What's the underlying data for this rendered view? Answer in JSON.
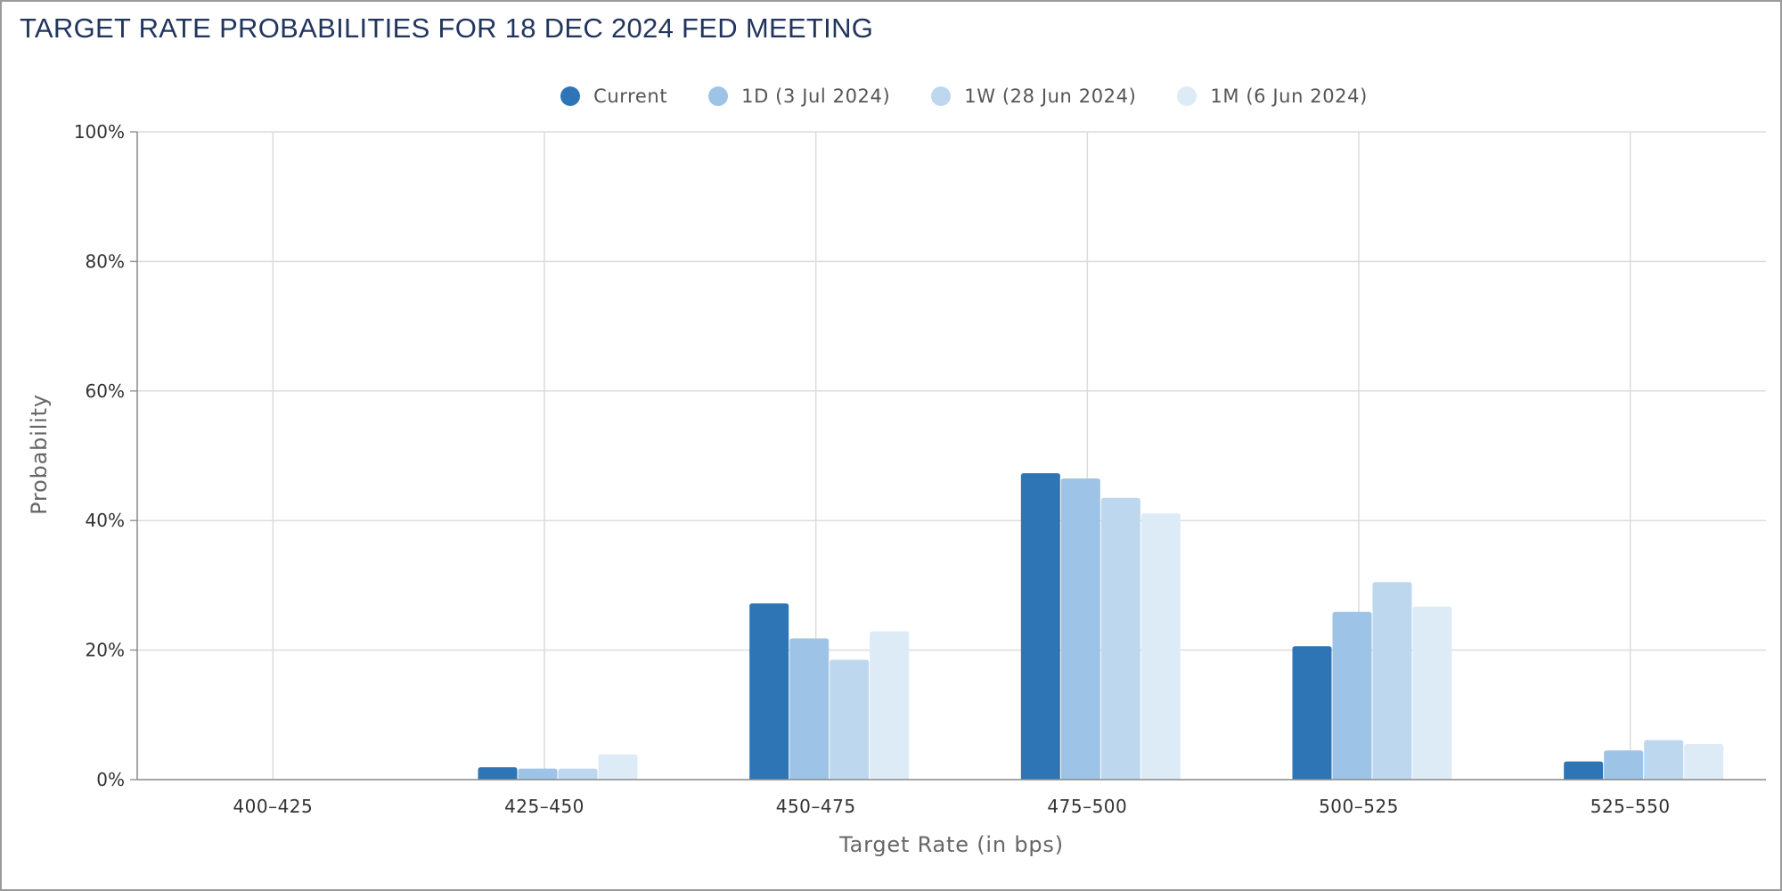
{
  "chart_data": {
    "type": "bar",
    "title": "TARGET RATE PROBABILITIES FOR 18 DEC 2024 FED MEETING",
    "xlabel": "Target Rate (in bps)",
    "ylabel": "Probability",
    "ylim": [
      0,
      100
    ],
    "yticks": [
      "0%",
      "20%",
      "40%",
      "60%",
      "80%",
      "100%"
    ],
    "grid": true,
    "legend_position": "top-center",
    "categories": [
      "400–425",
      "425–450",
      "450–475",
      "475–500",
      "500–525",
      "525–550"
    ],
    "series": [
      {
        "name": "Current",
        "color": "#2e75b6",
        "values": [
          0,
          1.9,
          27.2,
          47.3,
          20.6,
          2.8
        ]
      },
      {
        "name": "1D (3 Jul 2024)",
        "color": "#9dc3e6",
        "values": [
          0,
          1.7,
          21.8,
          46.5,
          25.9,
          4.5
        ]
      },
      {
        "name": "1W (28 Jun 2024)",
        "color": "#bdd7ee",
        "values": [
          0,
          1.7,
          18.5,
          43.5,
          30.5,
          6.1
        ]
      },
      {
        "name": "1M (6 Jun 2024)",
        "color": "#ddebf7",
        "values": [
          0,
          3.9,
          22.9,
          41.1,
          26.7,
          5.5
        ]
      }
    ]
  }
}
